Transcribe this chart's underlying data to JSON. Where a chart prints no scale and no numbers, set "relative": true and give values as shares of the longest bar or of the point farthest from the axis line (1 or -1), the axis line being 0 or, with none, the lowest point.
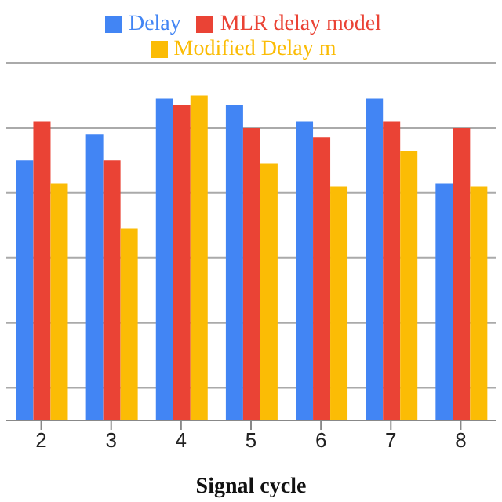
{
  "chart_data": {
    "type": "bar",
    "xlabel": "Signal cycle",
    "categories": [
      "2",
      "3",
      "4",
      "5",
      "6",
      "7",
      "8"
    ],
    "relative": true,
    "grid": "y",
    "legend": "top",
    "series": [
      {
        "name": "Delay",
        "color": "#4285f4",
        "values": [
          0.8,
          0.88,
          0.99,
          0.97,
          0.92,
          0.99,
          0.73
        ]
      },
      {
        "name": "MLR delay model",
        "color": "#ea4335",
        "values": [
          0.92,
          0.8,
          0.97,
          0.9,
          0.87,
          0.92,
          0.9
        ]
      },
      {
        "name": "Modified Delay m",
        "color": "#fbbc05",
        "values": [
          0.73,
          0.59,
          1,
          0.79,
          0.72,
          0.83,
          0.72
        ]
      }
    ]
  }
}
